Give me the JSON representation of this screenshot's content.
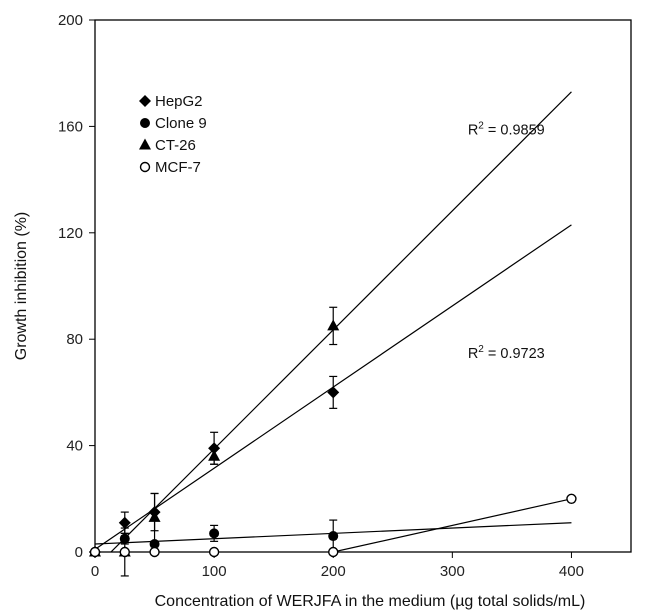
{
  "chart_data": {
    "type": "scatter",
    "title": "",
    "xlabel": "Concentration of WERJFA in the medium (µg total solids/mL)",
    "ylabel": "Growth inhibition (%)",
    "xlim": [
      0,
      450
    ],
    "ylim": [
      0,
      200
    ],
    "xticks": [
      0,
      100,
      200,
      300,
      400
    ],
    "yticks": [
      0,
      40,
      80,
      120,
      160,
      200
    ],
    "grid": false,
    "legend_position": "top-left",
    "series": [
      {
        "name": "HepG2",
        "marker": "diamond-filled",
        "x": [
          0,
          25,
          50,
          100,
          200
        ],
        "y": [
          0,
          11,
          15,
          39,
          60
        ],
        "err": [
          0,
          4,
          7,
          6,
          6
        ],
        "fit": {
          "x": [
            0,
            400
          ],
          "y": [
            1,
            123
          ]
        }
      },
      {
        "name": "Clone 9",
        "marker": "circle-filled",
        "x": [
          0,
          25,
          50,
          100,
          200
        ],
        "y": [
          0,
          5,
          3,
          7,
          6
        ],
        "err": [
          0,
          2,
          1,
          3,
          6
        ],
        "fit": {
          "x": [
            0,
            400
          ],
          "y": [
            3,
            11
          ]
        }
      },
      {
        "name": "CT-26",
        "marker": "triangle-filled",
        "x": [
          0,
          25,
          50,
          100,
          200
        ],
        "y": [
          0,
          0,
          13,
          36,
          85
        ],
        "err": [
          0,
          9,
          9,
          3,
          7
        ],
        "fit": {
          "x": [
            0,
            400
          ],
          "y": [
            -6,
            173
          ]
        }
      },
      {
        "name": "MCF-7",
        "marker": "circle-open",
        "x": [
          0,
          25,
          50,
          100,
          200,
          400
        ],
        "y": [
          0,
          0,
          0,
          0,
          0,
          20
        ],
        "err": [
          0,
          0,
          0,
          0,
          0,
          0
        ],
        "fit": {
          "x": [
            200,
            400
          ],
          "y": [
            0,
            20
          ]
        }
      }
    ],
    "annotations": [
      {
        "base": "R",
        "sup": "2",
        "rest": " = 0.9859",
        "x": 313,
        "y": 157
      },
      {
        "base": "R",
        "sup": "2",
        "rest": " = 0.9723",
        "x": 313,
        "y": 73
      }
    ]
  }
}
